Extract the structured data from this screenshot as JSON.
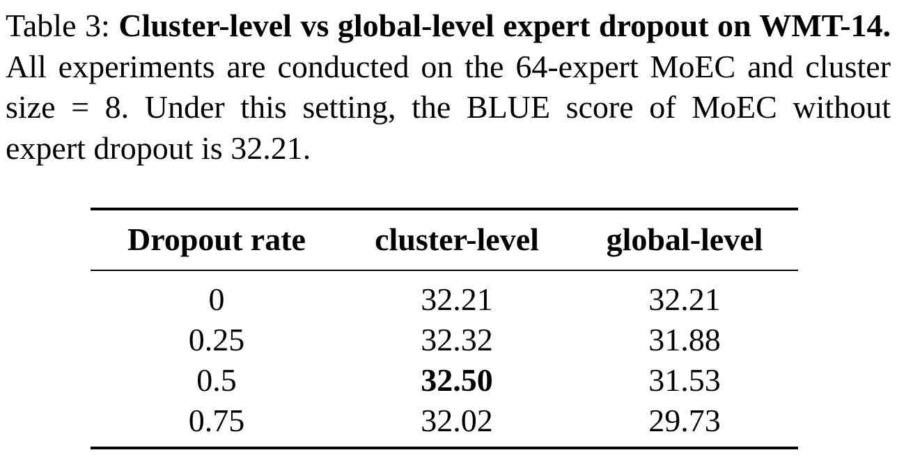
{
  "caption": {
    "label": "Table 3:",
    "title": "Cluster-level vs global-level expert dropout on WMT-14.",
    "text": "All experiments are conducted on the 64-expert MoEC and cluster size = 8. Under this setting, the BLUE score of MoEC without expert dropout is 32.21."
  },
  "table": {
    "headers": [
      "Dropout rate",
      "cluster-level",
      "global-level"
    ],
    "rows": [
      {
        "rate": "0",
        "cluster": "32.21",
        "global": "32.21"
      },
      {
        "rate": "0.25",
        "cluster": "32.32",
        "global": "31.88"
      },
      {
        "rate": "0.5",
        "cluster": "32.50",
        "global": "31.53"
      },
      {
        "rate": "0.75",
        "cluster": "32.02",
        "global": "29.73"
      }
    ],
    "bold_cell": "rows.2.cluster"
  }
}
